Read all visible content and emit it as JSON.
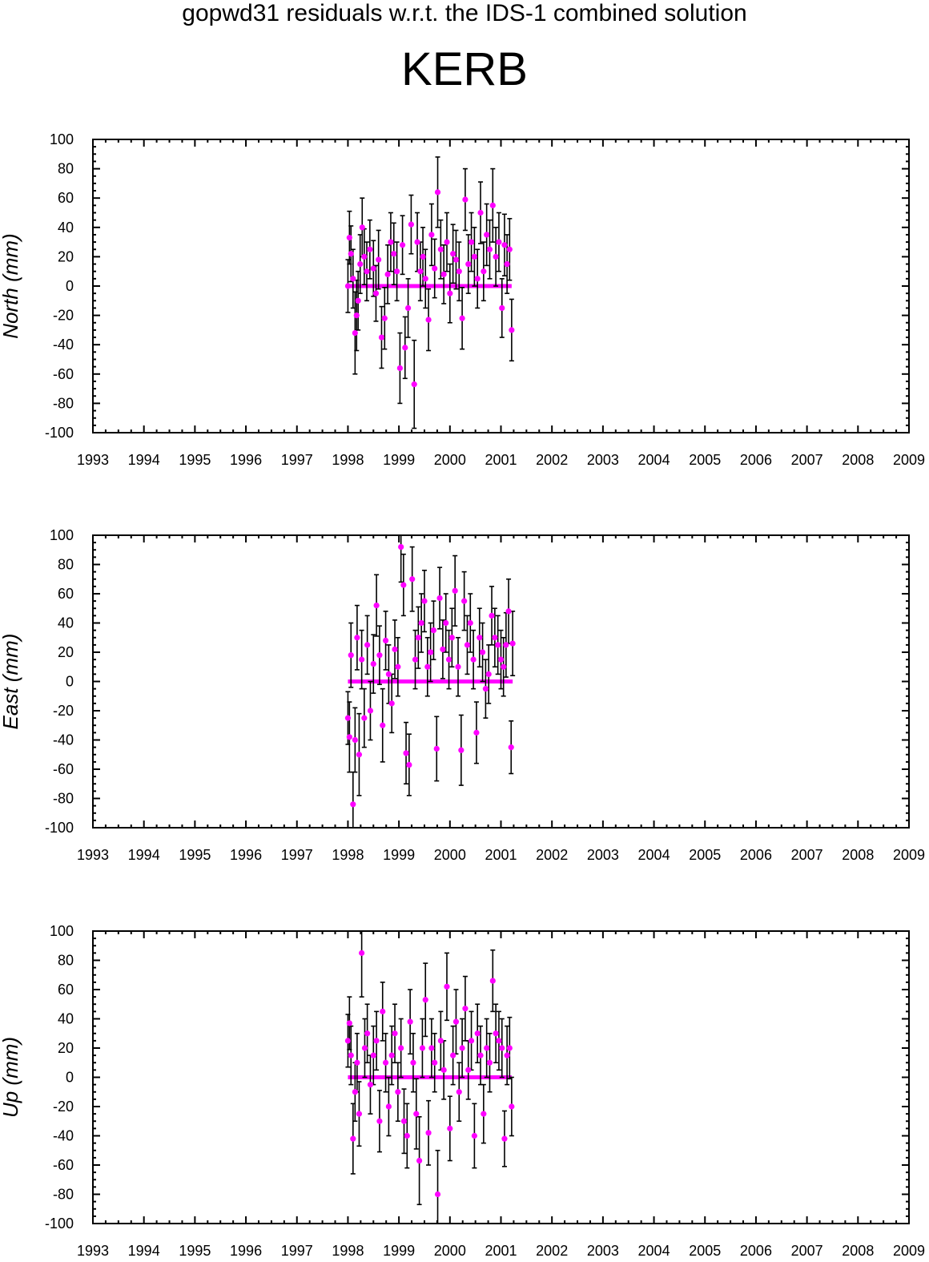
{
  "title": "gopwd31 residuals w.r.t. the IDS-1 combined solution",
  "station": "KERB",
  "colors": {
    "point": "#ff00ff",
    "errorbar": "#000000",
    "frame": "#000000"
  },
  "chart_data": [
    {
      "type": "scatter",
      "ylabel": "North (mm)",
      "xlim": [
        1993,
        2009
      ],
      "ylim": [
        -100,
        100
      ],
      "xticks": [
        "1993",
        "1994",
        "1995",
        "1996",
        "1997",
        "1998",
        "1999",
        "2000",
        "2001",
        "2002",
        "2003",
        "2004",
        "2005",
        "2006",
        "2007",
        "2008",
        "2009"
      ],
      "yticks": [
        "100",
        "80",
        "60",
        "40",
        "20",
        "0",
        "-20",
        "-40",
        "-60",
        "-80",
        "-100"
      ],
      "grid": false,
      "error_bars": true,
      "series": [
        {
          "x": [
            1998.0,
            1998.03,
            1998.06,
            1998.1,
            1998.14,
            1998.17,
            1998.2,
            1998.24,
            1998.28,
            1998.32,
            1998.37,
            1998.43,
            1998.5,
            1998.55,
            1998.6,
            1998.66,
            1998.72,
            1998.78,
            1998.84,
            1998.9,
            1998.96,
            1999.02,
            1999.07,
            1999.12,
            1999.18,
            1999.24,
            1999.3,
            1999.36,
            1999.42,
            1999.47,
            1999.52,
            1999.58,
            1999.64,
            1999.7,
            1999.76,
            1999.82,
            1999.88,
            1999.94,
            2000.0,
            2000.06,
            2000.12,
            2000.18,
            2000.24,
            2000.3,
            2000.36,
            2000.42,
            2000.48,
            2000.54,
            2000.6,
            2000.66,
            2000.72,
            2000.78,
            2000.84,
            2000.9,
            2000.96,
            2001.02,
            2001.07,
            2001.12,
            2001.17,
            2001.21
          ],
          "y": [
            0,
            33,
            22,
            5,
            -32,
            -20,
            -10,
            15,
            40,
            20,
            10,
            25,
            12,
            -5,
            18,
            -35,
            -22,
            8,
            30,
            22,
            10,
            -56,
            28,
            -42,
            -15,
            42,
            -67,
            30,
            10,
            20,
            5,
            -23,
            35,
            12,
            64,
            25,
            8,
            30,
            -5,
            22,
            18,
            10,
            -22,
            59,
            15,
            30,
            20,
            5,
            50,
            10,
            35,
            25,
            55,
            20,
            30,
            -15,
            28,
            15,
            25,
            -30
          ],
          "err": [
            18,
            18,
            19,
            20,
            28,
            24,
            20,
            20,
            20,
            19,
            20,
            20,
            19,
            19,
            20,
            21,
            21,
            20,
            20,
            21,
            20,
            24,
            20,
            21,
            20,
            20,
            30,
            20,
            20,
            20,
            20,
            21,
            21,
            20,
            24,
            20,
            20,
            20,
            20,
            20,
            20,
            20,
            21,
            21,
            20,
            20,
            20,
            20,
            21,
            20,
            21,
            20,
            25,
            20,
            20,
            20,
            21,
            20,
            21,
            21
          ]
        }
      ]
    },
    {
      "type": "scatter",
      "ylabel": "East (mm)",
      "xlim": [
        1993,
        2009
      ],
      "ylim": [
        -100,
        100
      ],
      "xticks": [
        "1993",
        "1994",
        "1995",
        "1996",
        "1997",
        "1998",
        "1999",
        "2000",
        "2001",
        "2002",
        "2003",
        "2004",
        "2005",
        "2006",
        "2007",
        "2008",
        "2009"
      ],
      "yticks": [
        "100",
        "80",
        "60",
        "40",
        "20",
        "0",
        "-20",
        "-40",
        "-60",
        "-80",
        "-100"
      ],
      "grid": false,
      "error_bars": true,
      "series": [
        {
          "x": [
            1998.0,
            1998.03,
            1998.06,
            1998.1,
            1998.14,
            1998.18,
            1998.22,
            1998.27,
            1998.32,
            1998.38,
            1998.44,
            1998.5,
            1998.56,
            1998.62,
            1998.68,
            1998.74,
            1998.8,
            1998.86,
            1998.92,
            1998.98,
            1999.04,
            1999.09,
            1999.14,
            1999.2,
            1999.26,
            1999.32,
            1999.38,
            1999.44,
            1999.5,
            1999.56,
            1999.62,
            1999.68,
            1999.74,
            1999.8,
            1999.86,
            1999.92,
            1999.98,
            2000.04,
            2000.1,
            2000.16,
            2000.22,
            2000.28,
            2000.34,
            2000.4,
            2000.46,
            2000.52,
            2000.58,
            2000.64,
            2000.7,
            2000.76,
            2000.82,
            2000.88,
            2000.94,
            2001.0,
            2001.05,
            2001.1,
            2001.15,
            2001.2,
            2001.23
          ],
          "y": [
            -25,
            -38,
            18,
            -84,
            -40,
            30,
            -50,
            15,
            -25,
            25,
            -20,
            12,
            52,
            18,
            -30,
            28,
            5,
            -15,
            22,
            10,
            92,
            66,
            -49,
            -57,
            70,
            15,
            30,
            40,
            55,
            10,
            20,
            35,
            -46,
            57,
            22,
            40,
            15,
            30,
            62,
            10,
            -47,
            55,
            25,
            40,
            15,
            -35,
            30,
            20,
            -5,
            5,
            45,
            30,
            25,
            15,
            10,
            25,
            48,
            -45,
            26
          ],
          "err": [
            18,
            24,
            22,
            22,
            22,
            22,
            28,
            20,
            20,
            20,
            20,
            20,
            21,
            20,
            25,
            20,
            20,
            20,
            20,
            20,
            24,
            21,
            21,
            21,
            22,
            20,
            21,
            20,
            21,
            20,
            20,
            20,
            22,
            21,
            20,
            20,
            20,
            20,
            24,
            20,
            24,
            20,
            20,
            20,
            20,
            21,
            20,
            20,
            20,
            20,
            20,
            20,
            20,
            20,
            20,
            22,
            22,
            18,
            22
          ]
        }
      ]
    },
    {
      "type": "scatter",
      "ylabel": "Up (mm)",
      "xlim": [
        1993,
        2009
      ],
      "ylim": [
        -100,
        100
      ],
      "xticks": [
        "1993",
        "1994",
        "1995",
        "1996",
        "1997",
        "1998",
        "1999",
        "2000",
        "2001",
        "2002",
        "2003",
        "2004",
        "2005",
        "2006",
        "2007",
        "2008",
        "2009"
      ],
      "yticks": [
        "100",
        "80",
        "60",
        "40",
        "20",
        "0",
        "-20",
        "-40",
        "-60",
        "-80",
        "-100"
      ],
      "grid": false,
      "error_bars": true,
      "series": [
        {
          "x": [
            1998.0,
            1998.03,
            1998.06,
            1998.1,
            1998.14,
            1998.18,
            1998.22,
            1998.27,
            1998.33,
            1998.38,
            1998.44,
            1998.5,
            1998.56,
            1998.62,
            1998.68,
            1998.74,
            1998.8,
            1998.86,
            1998.92,
            1998.98,
            1999.04,
            1999.1,
            1999.16,
            1999.22,
            1999.28,
            1999.34,
            1999.4,
            1999.46,
            1999.52,
            1999.58,
            1999.64,
            1999.7,
            1999.76,
            1999.82,
            1999.88,
            1999.94,
            2000.0,
            2000.06,
            2000.12,
            2000.18,
            2000.24,
            2000.3,
            2000.36,
            2000.42,
            2000.48,
            2000.54,
            2000.6,
            2000.66,
            2000.72,
            2000.78,
            2000.84,
            2000.9,
            2000.96,
            2001.02,
            2001.07,
            2001.12,
            2001.17,
            2001.21
          ],
          "y": [
            25,
            37,
            15,
            -42,
            -10,
            10,
            -25,
            85,
            20,
            30,
            -5,
            15,
            25,
            -30,
            45,
            10,
            -20,
            15,
            30,
            -10,
            20,
            -30,
            -40,
            38,
            10,
            -25,
            -57,
            20,
            53,
            -38,
            20,
            10,
            -80,
            25,
            5,
            62,
            -35,
            15,
            38,
            -10,
            20,
            47,
            5,
            25,
            -40,
            30,
            15,
            -25,
            20,
            10,
            66,
            30,
            25,
            20,
            -42,
            15,
            20,
            -20
          ],
          "err": [
            18,
            18,
            20,
            24,
            20,
            20,
            22,
            30,
            20,
            20,
            20,
            20,
            20,
            21,
            20,
            20,
            20,
            20,
            20,
            20,
            20,
            22,
            22,
            22,
            20,
            24,
            30,
            20,
            25,
            22,
            20,
            20,
            30,
            20,
            20,
            23,
            22,
            20,
            22,
            20,
            20,
            22,
            20,
            20,
            22,
            20,
            20,
            20,
            20,
            20,
            21,
            20,
            20,
            20,
            19,
            20,
            21,
            20
          ]
        }
      ]
    }
  ]
}
